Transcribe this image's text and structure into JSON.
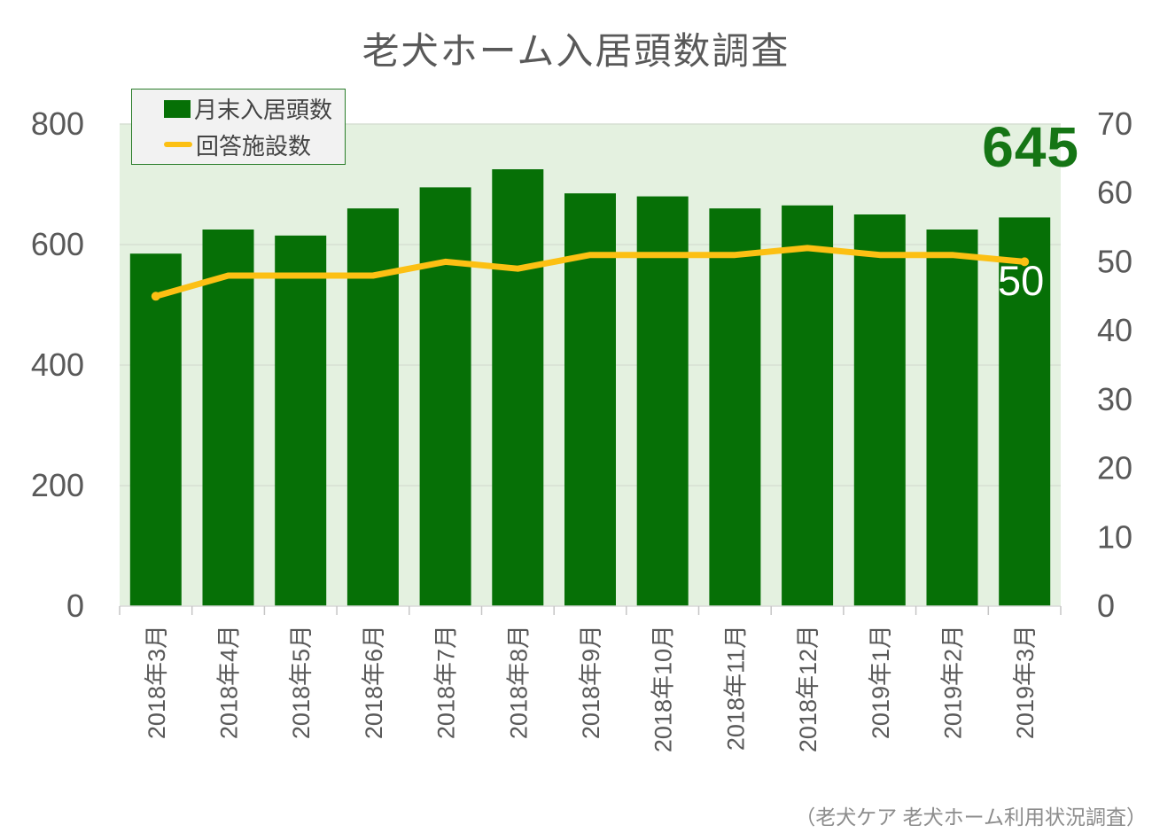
{
  "title": "老犬ホーム入居頭数調査",
  "source_note": "（老犬ケア 老犬ホーム利用状況調査）",
  "colors": {
    "bar": "#067006",
    "line": "#fcc013",
    "plot_background": "#e4f1e0",
    "gridline": "#d6dfd2",
    "axis_line": "#d9d9d9",
    "tick_mark": "#c6c6c6",
    "axis_text": "#595959",
    "title_text": "#595959",
    "legend_background": "#f2f2f2",
    "legend_border": "#2a7d2a",
    "annotation_green": "#157515",
    "annotation_white": "#ffffff",
    "source_text": "#8c8c8c"
  },
  "legend": {
    "items": [
      {
        "label": "月末入居頭数",
        "marker": "square"
      },
      {
        "label": "回答施設数",
        "marker": "line"
      }
    ]
  },
  "chart_data": {
    "type": "bar",
    "title": "老犬ホーム入居頭数調査",
    "categories": [
      "2018年3月",
      "2018年4月",
      "2018年5月",
      "2018年6月",
      "2018年7月",
      "2018年8月",
      "2018年9月",
      "2018年10月",
      "2018年11月",
      "2018年12月",
      "2019年1月",
      "2019年2月",
      "2019年3月"
    ],
    "series": [
      {
        "name": "月末入居頭数",
        "type": "bar",
        "axis": "left",
        "color": "#067006",
        "values": [
          585,
          625,
          615,
          660,
          695,
          725,
          685,
          680,
          660,
          665,
          650,
          625,
          645
        ]
      },
      {
        "name": "回答施設数",
        "type": "line",
        "axis": "right",
        "color": "#fcc013",
        "values": [
          45,
          48,
          48,
          48,
          50,
          49,
          51,
          51,
          51,
          52,
          51,
          51,
          50
        ]
      }
    ],
    "left_axis": {
      "range": [
        0,
        800
      ],
      "ticks": [
        800,
        600,
        400,
        200,
        0
      ]
    },
    "right_axis": {
      "range": [
        0,
        70
      ],
      "ticks": [
        70,
        60,
        50,
        40,
        30,
        20,
        10,
        0
      ]
    },
    "grid": true,
    "legend_position": "top-left",
    "annotations": [
      {
        "text": "645",
        "series": "月末入居頭数",
        "category": "2019年3月",
        "color": "#157515"
      },
      {
        "text": "50",
        "series": "回答施設数",
        "category": "2019年3月",
        "color": "#ffffff"
      }
    ]
  }
}
